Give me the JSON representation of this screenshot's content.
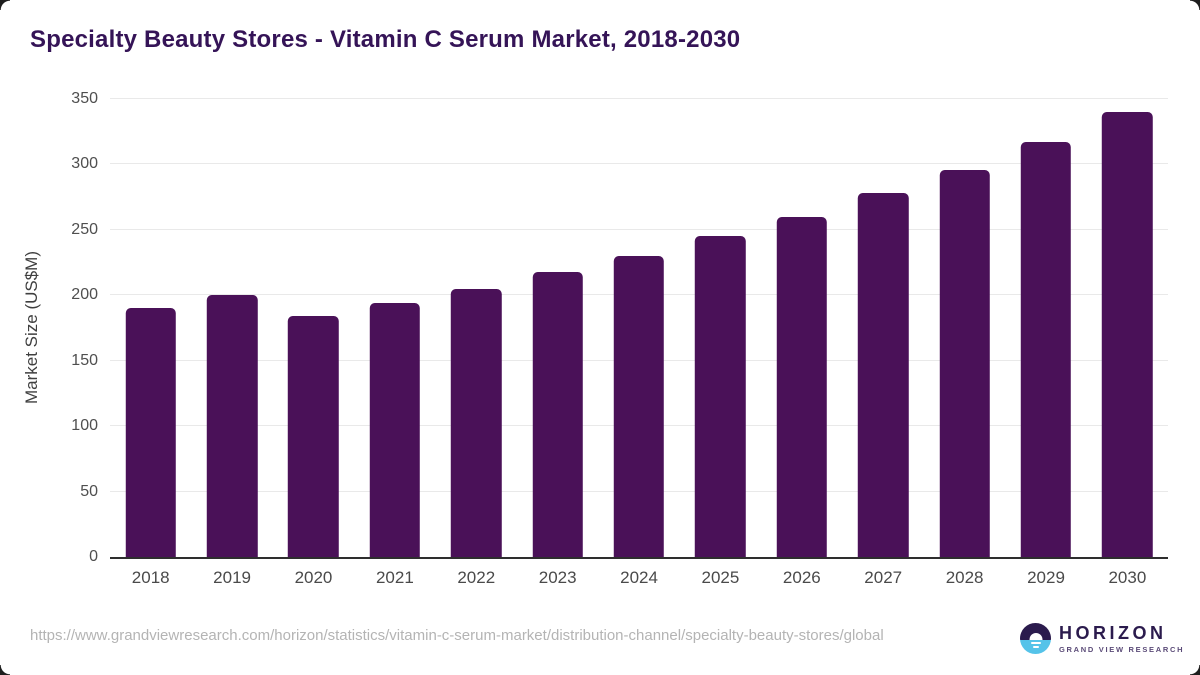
{
  "title": "Specialty Beauty Stores - Vitamin C Serum Market, 2018-2030",
  "chart_data": {
    "type": "bar",
    "title": "Specialty Beauty Stores - Vitamin C Serum Market, 2018-2030",
    "categories": [
      "2018",
      "2019",
      "2020",
      "2021",
      "2022",
      "2023",
      "2024",
      "2025",
      "2026",
      "2027",
      "2028",
      "2029",
      "2030"
    ],
    "values": [
      190,
      200,
      184,
      194,
      205,
      218,
      230,
      245,
      260,
      278,
      296,
      317,
      340
    ],
    "xlabel": "",
    "ylabel": "Market Size (US$M)",
    "ylim": [
      0,
      350
    ],
    "yticks": [
      0,
      50,
      100,
      150,
      200,
      250,
      300,
      350
    ],
    "grid": "horizontal",
    "legend": "none",
    "bar_color": "#4a1158"
  },
  "colors": {
    "title_text": "#351457",
    "bar_fill": "#4a1158",
    "gridline": "#e9e9e9",
    "axis_line": "#2e2e2e",
    "tick_label": "#4f4f4f",
    "url_text": "#b4b4b4",
    "logo_dark": "#2b1b4d",
    "logo_blue": "#55c3e9"
  },
  "footer": {
    "source_url": "https://www.grandviewresearch.com/horizon/statistics/vitamin-c-serum-market/distribution-channel/specialty-beauty-stores/global",
    "logo": {
      "icon": "horizon-sunset-icon",
      "brand": "HORIZON",
      "sub_brand": "GRAND VIEW RESEARCH"
    }
  }
}
